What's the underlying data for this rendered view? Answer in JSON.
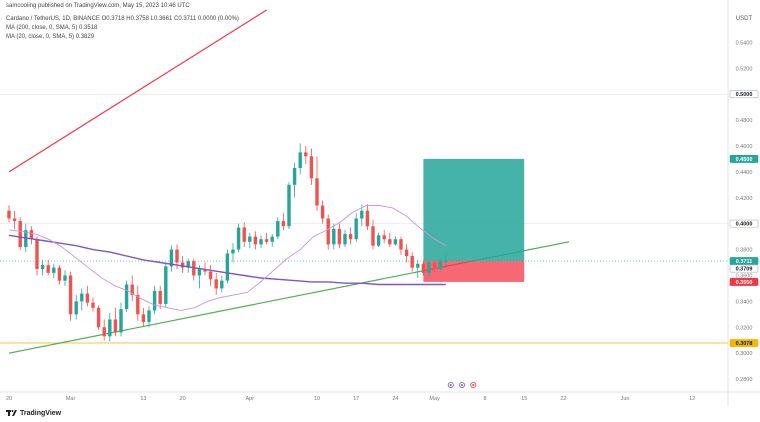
{
  "header": {
    "published": "samcooling published on TradingView.com, May 15, 2023 10:46 UTC",
    "symbol_line": "Cardano / TetherUS, 1D, BINANCE O0.3718 H0.3758 L0.3661 C0.3711 0.0000 (0.00%)",
    "ma200_line": "MA (200, close, 0, SMA, 5) 0.3518",
    "ma20_line": "MA (20, close, 0, SMA, 5) 0.3829"
  },
  "colors": {
    "up": "#26a69a",
    "down": "#ef5350",
    "ma200": "#7e57c2",
    "ma20": "#ce93d8",
    "trend_red": "#f23645",
    "trend_green": "#4caf50",
    "support": "#f5c542",
    "profit_zone": "#26a69a",
    "loss_zone": "#f23645"
  },
  "footer": {
    "logo_text": "TradingView"
  },
  "chart_data": {
    "type": "candlestick",
    "currency": "USDT",
    "ylim": [
      0.27,
      0.565
    ],
    "y_ticks": [
      "0.5400",
      "0.5200",
      "0.5000",
      "0.4800",
      "0.4600",
      "0.4400",
      "0.4200",
      "0.4000",
      "0.3800",
      "0.3600",
      "0.3400",
      "0.3200",
      "0.3000",
      "0.2800"
    ],
    "x_ticks": [
      "20",
      "Mar",
      "13",
      "20",
      "Apr",
      "10",
      "17",
      "24",
      "May",
      "8",
      "15",
      "22",
      "Jun",
      "12"
    ],
    "price_badges": [
      {
        "label": "0.5000",
        "value": 0.5,
        "style": "gray"
      },
      {
        "label": "0.4500",
        "value": 0.45,
        "style": "green"
      },
      {
        "label": "0.4000",
        "value": 0.4,
        "style": "gray"
      },
      {
        "label": "0.3711",
        "value": 0.3711,
        "style": "green"
      },
      {
        "label": "0.3709",
        "value": 0.3709,
        "style": "gray"
      },
      {
        "label": "0.3550",
        "value": 0.355,
        "style": "red"
      },
      {
        "label": "0.3078",
        "value": 0.3078,
        "style": "yellow"
      }
    ],
    "candles": [
      {
        "o": 0.41,
        "h": 0.414,
        "l": 0.401,
        "c": 0.404
      },
      {
        "o": 0.404,
        "h": 0.41,
        "l": 0.396,
        "c": 0.402
      },
      {
        "o": 0.402,
        "h": 0.405,
        "l": 0.38,
        "c": 0.382
      },
      {
        "o": 0.382,
        "h": 0.4,
        "l": 0.378,
        "c": 0.395
      },
      {
        "o": 0.395,
        "h": 0.398,
        "l": 0.384,
        "c": 0.388
      },
      {
        "o": 0.388,
        "h": 0.39,
        "l": 0.36,
        "c": 0.365
      },
      {
        "o": 0.365,
        "h": 0.372,
        "l": 0.36,
        "c": 0.368
      },
      {
        "o": 0.368,
        "h": 0.372,
        "l": 0.36,
        "c": 0.362
      },
      {
        "o": 0.362,
        "h": 0.369,
        "l": 0.358,
        "c": 0.366
      },
      {
        "o": 0.366,
        "h": 0.368,
        "l": 0.353,
        "c": 0.356
      },
      {
        "o": 0.356,
        "h": 0.364,
        "l": 0.352,
        "c": 0.36
      },
      {
        "o": 0.36,
        "h": 0.363,
        "l": 0.325,
        "c": 0.33
      },
      {
        "o": 0.33,
        "h": 0.345,
        "l": 0.326,
        "c": 0.34
      },
      {
        "o": 0.34,
        "h": 0.35,
        "l": 0.333,
        "c": 0.346
      },
      {
        "o": 0.346,
        "h": 0.352,
        "l": 0.336,
        "c": 0.339
      },
      {
        "o": 0.339,
        "h": 0.343,
        "l": 0.332,
        "c": 0.335
      },
      {
        "o": 0.335,
        "h": 0.337,
        "l": 0.318,
        "c": 0.32
      },
      {
        "o": 0.32,
        "h": 0.326,
        "l": 0.31,
        "c": 0.313
      },
      {
        "o": 0.313,
        "h": 0.331,
        "l": 0.309,
        "c": 0.326
      },
      {
        "o": 0.326,
        "h": 0.335,
        "l": 0.313,
        "c": 0.316
      },
      {
        "o": 0.316,
        "h": 0.339,
        "l": 0.313,
        "c": 0.334
      },
      {
        "o": 0.334,
        "h": 0.356,
        "l": 0.332,
        "c": 0.353
      },
      {
        "o": 0.353,
        "h": 0.36,
        "l": 0.34,
        "c": 0.345
      },
      {
        "o": 0.345,
        "h": 0.352,
        "l": 0.325,
        "c": 0.33
      },
      {
        "o": 0.33,
        "h": 0.335,
        "l": 0.321,
        "c": 0.324
      },
      {
        "o": 0.324,
        "h": 0.336,
        "l": 0.32,
        "c": 0.333
      },
      {
        "o": 0.333,
        "h": 0.352,
        "l": 0.33,
        "c": 0.348
      },
      {
        "o": 0.348,
        "h": 0.352,
        "l": 0.334,
        "c": 0.338
      },
      {
        "o": 0.338,
        "h": 0.37,
        "l": 0.335,
        "c": 0.367
      },
      {
        "o": 0.367,
        "h": 0.383,
        "l": 0.363,
        "c": 0.38
      },
      {
        "o": 0.38,
        "h": 0.384,
        "l": 0.365,
        "c": 0.37
      },
      {
        "o": 0.37,
        "h": 0.375,
        "l": 0.362,
        "c": 0.366
      },
      {
        "o": 0.366,
        "h": 0.373,
        "l": 0.362,
        "c": 0.371
      },
      {
        "o": 0.371,
        "h": 0.373,
        "l": 0.356,
        "c": 0.36
      },
      {
        "o": 0.36,
        "h": 0.368,
        "l": 0.35,
        "c": 0.365
      },
      {
        "o": 0.365,
        "h": 0.37,
        "l": 0.36,
        "c": 0.363
      },
      {
        "o": 0.363,
        "h": 0.368,
        "l": 0.352,
        "c": 0.357
      },
      {
        "o": 0.357,
        "h": 0.362,
        "l": 0.345,
        "c": 0.35
      },
      {
        "o": 0.35,
        "h": 0.36,
        "l": 0.347,
        "c": 0.356
      },
      {
        "o": 0.356,
        "h": 0.38,
        "l": 0.354,
        "c": 0.377
      },
      {
        "o": 0.377,
        "h": 0.385,
        "l": 0.37,
        "c": 0.38
      },
      {
        "o": 0.38,
        "h": 0.4,
        "l": 0.378,
        "c": 0.397
      },
      {
        "o": 0.397,
        "h": 0.401,
        "l": 0.382,
        "c": 0.386
      },
      {
        "o": 0.386,
        "h": 0.393,
        "l": 0.381,
        "c": 0.39
      },
      {
        "o": 0.39,
        "h": 0.394,
        "l": 0.38,
        "c": 0.384
      },
      {
        "o": 0.384,
        "h": 0.391,
        "l": 0.381,
        "c": 0.388
      },
      {
        "o": 0.388,
        "h": 0.393,
        "l": 0.384,
        "c": 0.386
      },
      {
        "o": 0.386,
        "h": 0.392,
        "l": 0.382,
        "c": 0.39
      },
      {
        "o": 0.39,
        "h": 0.405,
        "l": 0.388,
        "c": 0.402
      },
      {
        "o": 0.402,
        "h": 0.408,
        "l": 0.395,
        "c": 0.398
      },
      {
        "o": 0.398,
        "h": 0.432,
        "l": 0.396,
        "c": 0.43
      },
      {
        "o": 0.43,
        "h": 0.447,
        "l": 0.42,
        "c": 0.443
      },
      {
        "o": 0.443,
        "h": 0.462,
        "l": 0.438,
        "c": 0.455
      },
      {
        "o": 0.455,
        "h": 0.46,
        "l": 0.446,
        "c": 0.452
      },
      {
        "o": 0.452,
        "h": 0.458,
        "l": 0.43,
        "c": 0.435
      },
      {
        "o": 0.435,
        "h": 0.452,
        "l": 0.41,
        "c": 0.414
      },
      {
        "o": 0.414,
        "h": 0.418,
        "l": 0.4,
        "c": 0.404
      },
      {
        "o": 0.404,
        "h": 0.407,
        "l": 0.38,
        "c": 0.384
      },
      {
        "o": 0.384,
        "h": 0.4,
        "l": 0.38,
        "c": 0.396
      },
      {
        "o": 0.396,
        "h": 0.4,
        "l": 0.381,
        "c": 0.384
      },
      {
        "o": 0.384,
        "h": 0.395,
        "l": 0.382,
        "c": 0.392
      },
      {
        "o": 0.392,
        "h": 0.397,
        "l": 0.384,
        "c": 0.388
      },
      {
        "o": 0.388,
        "h": 0.408,
        "l": 0.386,
        "c": 0.404
      },
      {
        "o": 0.404,
        "h": 0.415,
        "l": 0.398,
        "c": 0.41
      },
      {
        "o": 0.41,
        "h": 0.415,
        "l": 0.395,
        "c": 0.398
      },
      {
        "o": 0.398,
        "h": 0.403,
        "l": 0.38,
        "c": 0.383
      },
      {
        "o": 0.383,
        "h": 0.393,
        "l": 0.382,
        "c": 0.391
      },
      {
        "o": 0.391,
        "h": 0.395,
        "l": 0.385,
        "c": 0.388
      },
      {
        "o": 0.388,
        "h": 0.393,
        "l": 0.382,
        "c": 0.384
      },
      {
        "o": 0.384,
        "h": 0.39,
        "l": 0.383,
        "c": 0.388
      },
      {
        "o": 0.388,
        "h": 0.39,
        "l": 0.376,
        "c": 0.38
      },
      {
        "o": 0.38,
        "h": 0.384,
        "l": 0.37,
        "c": 0.375
      },
      {
        "o": 0.375,
        "h": 0.378,
        "l": 0.363,
        "c": 0.366
      },
      {
        "o": 0.366,
        "h": 0.372,
        "l": 0.358,
        "c": 0.369
      },
      {
        "o": 0.369,
        "h": 0.371,
        "l": 0.36,
        "c": 0.362
      },
      {
        "o": 0.362,
        "h": 0.372,
        "l": 0.359,
        "c": 0.37
      },
      {
        "o": 0.37,
        "h": 0.372,
        "l": 0.362,
        "c": 0.365
      },
      {
        "o": 0.365,
        "h": 0.373,
        "l": 0.363,
        "c": 0.371
      },
      {
        "o": 0.371,
        "h": 0.376,
        "l": 0.366,
        "c": 0.371
      }
    ],
    "ma200": [
      0.391,
      0.389,
      0.387,
      0.385,
      0.383,
      0.38,
      0.378,
      0.375,
      0.372,
      0.37,
      0.368,
      0.366,
      0.364,
      0.362,
      0.36,
      0.358,
      0.357,
      0.356,
      0.355,
      0.355,
      0.354,
      0.354,
      0.353,
      0.353,
      0.353,
      0.353,
      0.353
    ],
    "ma20": [
      0.395,
      0.394,
      0.392,
      0.388,
      0.382,
      0.374,
      0.366,
      0.358,
      0.352,
      0.348,
      0.342,
      0.337,
      0.335,
      0.333,
      0.335,
      0.34,
      0.343,
      0.345,
      0.347,
      0.355,
      0.364,
      0.373,
      0.38,
      0.39,
      0.395,
      0.401,
      0.409,
      0.414,
      0.414,
      0.412,
      0.406,
      0.397,
      0.389,
      0.383
    ],
    "trendlines": [
      {
        "name": "resistance",
        "from": {
          "day": 0,
          "value": 0.44
        },
        "to": {
          "day": 46,
          "value": 0.565
        }
      },
      {
        "name": "support",
        "from": {
          "day": 0,
          "value": 0.3
        },
        "to": {
          "day": 100,
          "value": 0.386
        }
      }
    ],
    "horizontal_levels": [
      0.3078
    ],
    "position": {
      "entry": 0.3711,
      "target": 0.45,
      "stop": 0.355,
      "start_day": 74,
      "end_day": 92
    }
  }
}
